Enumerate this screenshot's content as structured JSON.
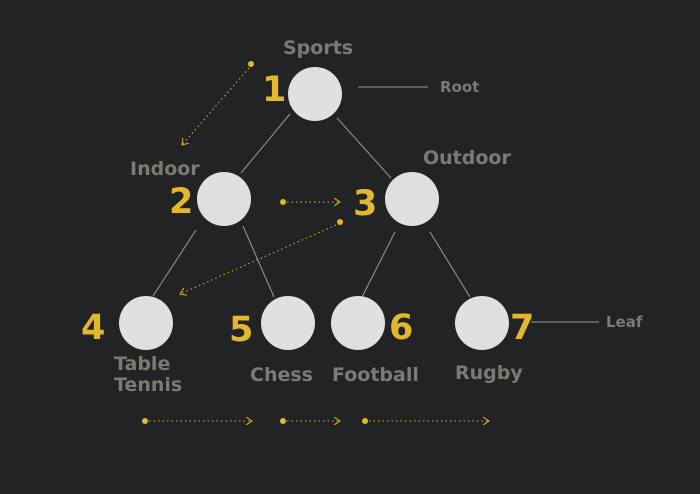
{
  "tree": {
    "nodes": [
      {
        "id": "sports",
        "label": "Sports",
        "number": "1"
      },
      {
        "id": "indoor",
        "label": "Indoor",
        "number": "2"
      },
      {
        "id": "outdoor",
        "label": "Outdoor",
        "number": "3"
      },
      {
        "id": "table-tennis",
        "label_line1": "Table",
        "label_line2": "Tennis",
        "number": "4"
      },
      {
        "id": "chess",
        "label": "Chess",
        "number": "5"
      },
      {
        "id": "football",
        "label": "Football",
        "number": "6"
      },
      {
        "id": "rugby",
        "label": "Rugby",
        "number": "7"
      }
    ],
    "edges": [
      [
        "sports",
        "indoor"
      ],
      [
        "sports",
        "outdoor"
      ],
      [
        "indoor",
        "table-tennis"
      ],
      [
        "indoor",
        "chess"
      ],
      [
        "outdoor",
        "football"
      ],
      [
        "outdoor",
        "rugby"
      ]
    ]
  },
  "annotations": {
    "root": "Root",
    "leaf": "Leaf"
  },
  "colors": {
    "background": "#222324",
    "node_fill": "#e0e0e0",
    "label": "#7d7a74",
    "number": "#e3b72e",
    "edge": "#9a9a9a"
  }
}
